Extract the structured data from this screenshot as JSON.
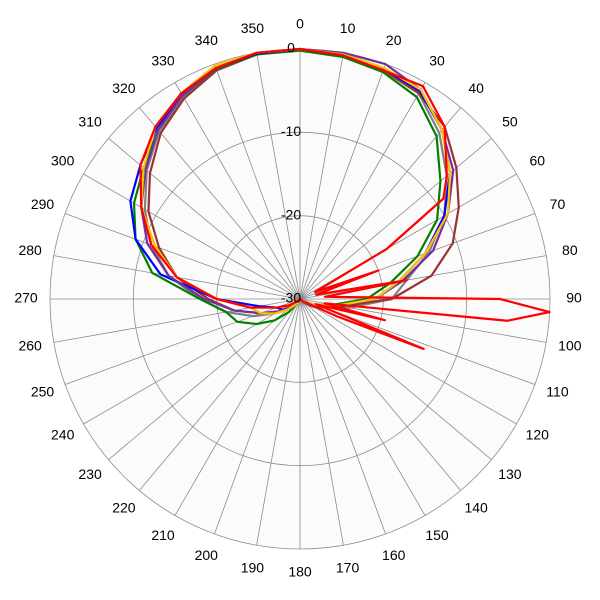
{
  "chart_data": {
    "type": "polar",
    "rlim": [
      -30,
      0
    ],
    "rticks": [
      -30,
      -20,
      -10,
      0
    ],
    "thetaticks": [
      0,
      10,
      20,
      30,
      40,
      50,
      60,
      70,
      80,
      90,
      100,
      110,
      120,
      130,
      140,
      150,
      160,
      170,
      180,
      190,
      200,
      210,
      220,
      230,
      240,
      250,
      260,
      270,
      280,
      290,
      300,
      310,
      320,
      330,
      340,
      350
    ],
    "grid": true,
    "theta": [
      0,
      10,
      20,
      30,
      40,
      50,
      60,
      70,
      80,
      90,
      100,
      110,
      120,
      130,
      140,
      150,
      160,
      170,
      180,
      190,
      200,
      210,
      220,
      230,
      240,
      250,
      260,
      270,
      280,
      290,
      300,
      310,
      320,
      330,
      340,
      350
    ],
    "series": [
      {
        "color": "#808080",
        "values": [
          0,
          -0.2,
          -0.5,
          -1.5,
          -4,
          -7,
          -10,
          -13.5,
          -17,
          -19,
          -24,
          -27,
          -28,
          -29,
          -29.5,
          -30,
          -30,
          -30,
          -30,
          -30,
          -30,
          -29.5,
          -29,
          -28,
          -26.5,
          -24,
          -21,
          -18,
          -14,
          -11,
          -8.5,
          -6,
          -3.7,
          -2,
          -0.7,
          -0.1
        ]
      },
      {
        "color": "#993333",
        "values": [
          0,
          -0.3,
          -0.8,
          -1.5,
          -3,
          -5.5,
          -8,
          -10.5,
          -14,
          -19,
          -25,
          -28,
          -29,
          -29.5,
          -30,
          -30,
          -30,
          -30,
          -30,
          -30,
          -30,
          -29.5,
          -29,
          -28.5,
          -27,
          -25,
          -22,
          -19,
          -15,
          -12,
          -9,
          -6.5,
          -4,
          -2.2,
          -0.8,
          -0.2
        ]
      },
      {
        "color": "#008000",
        "values": [
          -0.2,
          -0.5,
          -1,
          -2,
          -4.5,
          -8,
          -11,
          -15,
          -19,
          -22,
          -26,
          -28,
          -29,
          -29.5,
          -30,
          -30,
          -30,
          -30,
          -30,
          -30,
          -30,
          -29.5,
          -28,
          -26,
          -24,
          -22,
          -21,
          -18,
          -12,
          -9,
          -7,
          -5.5,
          -3.5,
          -1.8,
          -0.6,
          -0.2
        ]
      },
      {
        "color": "#0000ff",
        "values": [
          0,
          -0.3,
          -0.6,
          -1.2,
          -3.5,
          -6.5,
          -10,
          -14,
          -18,
          -21,
          -25,
          -27.5,
          -28.5,
          -29.5,
          -30,
          -30,
          -30,
          -30,
          -30,
          -30,
          -30,
          -29.5,
          -29,
          -28,
          -27.5,
          -27,
          -25,
          -20,
          -13,
          -9,
          -6.5,
          -5,
          -3.2,
          -1.7,
          -0.5,
          -0.1
        ]
      },
      {
        "color": "#7030a0",
        "values": [
          0,
          0,
          0,
          -1,
          -3.5,
          -6,
          -9.5,
          -13,
          -17.5,
          -21,
          -25,
          -27.5,
          -28.5,
          -29.5,
          -30,
          -30,
          -30,
          -30,
          -30,
          -30,
          -30,
          -29.5,
          -29,
          -28,
          -27,
          -25,
          -22,
          -18.5,
          -14,
          -10.5,
          -8,
          -5.8,
          -3.5,
          -1.8,
          -0.5,
          0
        ]
      },
      {
        "color": "#ffc000",
        "values": [
          0,
          -0.2,
          -0.5,
          -1,
          -3.5,
          -6.5,
          -9.5,
          -14,
          -18,
          -21,
          -25.5,
          -28,
          -29,
          -29.5,
          -30,
          -30,
          -30,
          -30,
          -30,
          -30,
          -30,
          -29.5,
          -29,
          -28,
          -26.5,
          -25,
          -24,
          -20,
          -15,
          -11.5,
          -8,
          -5.5,
          -3,
          -1.5,
          -0.2,
          0
        ]
      },
      {
        "color": "#ff0000",
        "theta": [
          0,
          10,
          20,
          30,
          40,
          50,
          55,
          60,
          65,
          70,
          75,
          80,
          85,
          90,
          93,
          96,
          100,
          104,
          108,
          112,
          115,
          120,
          130,
          140,
          150,
          160,
          170,
          180,
          190,
          200,
          210,
          220,
          230,
          240,
          250,
          260,
          270,
          280,
          290,
          300,
          310,
          320,
          330,
          340,
          350
        ],
        "values": [
          0,
          -0.3,
          -0.8,
          -0.5,
          -3,
          -7,
          -9,
          -18,
          -28,
          -20,
          -28,
          -17,
          -27,
          -6,
          0,
          -5,
          -27,
          -19.5,
          -28,
          -14,
          -25,
          -29,
          -29.5,
          -30,
          -30,
          -30,
          -30,
          -30,
          -30,
          -30,
          -30,
          -30,
          -29.5,
          -28.5,
          -27,
          -24,
          -20,
          -15,
          -11,
          -8,
          -5,
          -3,
          -1.5,
          -0.5,
          0
        ]
      }
    ]
  }
}
